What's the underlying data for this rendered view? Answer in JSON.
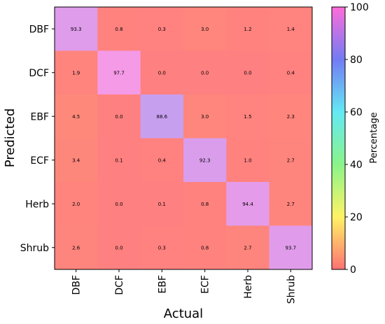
{
  "chart_data": {
    "type": "heatmap",
    "title": "",
    "xlabel": "Actual",
    "ylabel": "Predicted",
    "x_categories": [
      "DBF",
      "DCF",
      "EBF",
      "ECF",
      "Herb",
      "Shrub"
    ],
    "y_categories": [
      "DBF",
      "DCF",
      "EBF",
      "ECF",
      "Herb",
      "Shrub"
    ],
    "values": [
      [
        93.3,
        0.8,
        0.3,
        3.0,
        1.2,
        1.4
      ],
      [
        1.9,
        97.7,
        0.0,
        0.0,
        0.0,
        0.4
      ],
      [
        4.5,
        0.0,
        88.6,
        3.0,
        1.5,
        2.3
      ],
      [
        3.4,
        0.1,
        0.4,
        92.3,
        1.0,
        2.7
      ],
      [
        2.0,
        0.0,
        0.1,
        0.8,
        94.4,
        2.7
      ],
      [
        2.6,
        0.0,
        0.3,
        0.8,
        2.7,
        93.7
      ]
    ],
    "value_labels": [
      [
        "93.3",
        "0.8",
        "0.3",
        "3.0",
        "1.2",
        "1.4"
      ],
      [
        "1.9",
        "97.7",
        "0.0",
        "0.0",
        "0.0",
        "0.4"
      ],
      [
        "4.5",
        "0.0",
        "88.6",
        "3.0",
        "1.5",
        "2.3"
      ],
      [
        "3.4",
        "0.1",
        "0.4",
        "92.3",
        "1.0",
        "2.7"
      ],
      [
        "2.0",
        "0.0",
        "0.1",
        "0.8",
        "94.4",
        "2.7"
      ],
      [
        "2.6",
        "0.0",
        "0.3",
        "0.8",
        "2.7",
        "93.7"
      ]
    ],
    "colorbar": {
      "label": "Percentage",
      "range": [
        0,
        100
      ],
      "ticks": [
        "0",
        "20",
        "40",
        "60",
        "80",
        "100"
      ],
      "colormap": "rainbow (transparent over white)"
    },
    "grid": false
  }
}
